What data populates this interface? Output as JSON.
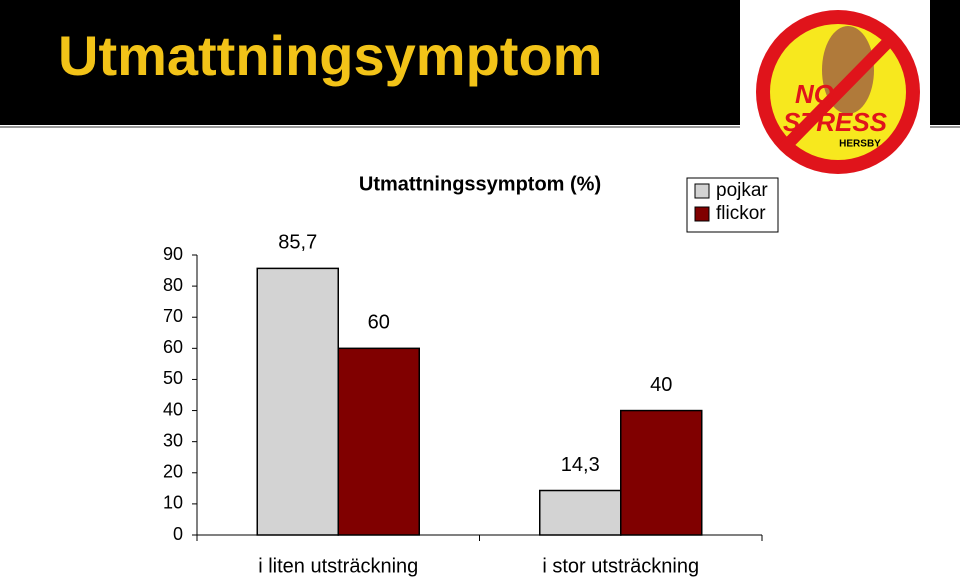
{
  "slide_title": "Utmattningsymptom",
  "logo": {
    "line1": "NO",
    "line2": "STRESS",
    "line3": "HERSBY"
  },
  "chart_data": {
    "type": "bar",
    "title": "Utmattningssymptom (%)",
    "categories": [
      "i liten utsträckning",
      "i stor utsträckning"
    ],
    "series": [
      {
        "name": "pojkar",
        "color": "#d3d3d3",
        "values": [
          85.7,
          14.3
        ],
        "value_labels": [
          "85,7",
          "14,3"
        ]
      },
      {
        "name": "flickor",
        "color": "#800000",
        "values": [
          60,
          40
        ],
        "value_labels": [
          "60",
          "40"
        ]
      }
    ],
    "ylim": [
      0,
      90
    ],
    "yticks": [
      0,
      10,
      20,
      30,
      40,
      50,
      60,
      70,
      80,
      90
    ],
    "legend": "top-right"
  }
}
